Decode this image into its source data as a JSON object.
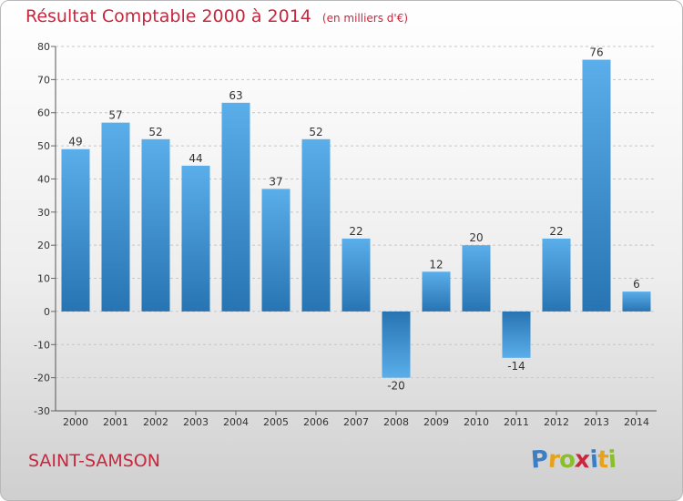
{
  "header": {
    "title": "Résultat Comptable 2000 à 2014",
    "unit": "(en milliers d'€)"
  },
  "footer": {
    "place": "SAINT-SAMSON",
    "brand_letters": [
      {
        "char": "P",
        "color": "#3a7fc6"
      },
      {
        "char": "r",
        "color": "#e8a21a"
      },
      {
        "char": "o",
        "color": "#8bbf2a"
      },
      {
        "char": "x",
        "color": "#c8273e"
      },
      {
        "char": "i",
        "color": "#3a7fc6"
      },
      {
        "char": "t",
        "color": "#e8a21a"
      },
      {
        "char": "i",
        "color": "#8bbf2a"
      }
    ]
  },
  "chart_data": {
    "type": "bar",
    "title": "Résultat Comptable 2000 à 2014",
    "subtitle": "(en milliers d'€)",
    "xlabel": "",
    "ylabel": "",
    "categories": [
      "2000",
      "2001",
      "2002",
      "2003",
      "2004",
      "2005",
      "2006",
      "2007",
      "2008",
      "2009",
      "2010",
      "2011",
      "2012",
      "2013",
      "2014"
    ],
    "values": [
      49,
      57,
      52,
      44,
      63,
      37,
      52,
      22,
      -20,
      12,
      20,
      -14,
      22,
      76,
      6
    ],
    "ylim": [
      -30,
      80
    ],
    "yticks": [
      -30,
      -20,
      -10,
      0,
      10,
      20,
      30,
      40,
      50,
      60,
      70,
      80
    ],
    "grid": "horizontal dashed",
    "bar_color_top": "#5aaeea",
    "bar_color_bottom": "#2874b2"
  }
}
